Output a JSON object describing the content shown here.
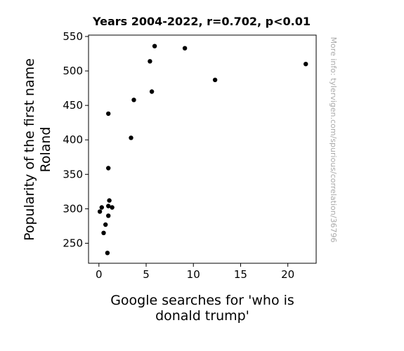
{
  "chart_data": {
    "type": "scatter",
    "title": "Years 2004-2022, r=0.702, p<0.01",
    "xlabel_lines": [
      "Google searches for 'who is",
      "donald trump'"
    ],
    "ylabel_lines": [
      "Popularity of the first name",
      "Roland"
    ],
    "xlim": [
      -1.1,
      23.0
    ],
    "ylim": [
      221,
      552
    ],
    "xticks": [
      0,
      5,
      10,
      15,
      20
    ],
    "yticks": [
      250,
      300,
      350,
      400,
      450,
      500,
      550
    ],
    "grid": false,
    "point_color": "#000000",
    "points": [
      {
        "x": 0.1,
        "y": 296
      },
      {
        "x": 0.3,
        "y": 302
      },
      {
        "x": 0.5,
        "y": 265
      },
      {
        "x": 0.7,
        "y": 277
      },
      {
        "x": 0.9,
        "y": 236
      },
      {
        "x": 1.0,
        "y": 290
      },
      {
        "x": 1.0,
        "y": 304
      },
      {
        "x": 1.1,
        "y": 312
      },
      {
        "x": 1.0,
        "y": 359
      },
      {
        "x": 1.0,
        "y": 438
      },
      {
        "x": 1.4,
        "y": 302
      },
      {
        "x": 3.4,
        "y": 403
      },
      {
        "x": 3.7,
        "y": 458
      },
      {
        "x": 5.4,
        "y": 514
      },
      {
        "x": 5.6,
        "y": 470
      },
      {
        "x": 5.9,
        "y": 536
      },
      {
        "x": 9.1,
        "y": 533
      },
      {
        "x": 12.3,
        "y": 487
      },
      {
        "x": 21.9,
        "y": 510
      }
    ]
  },
  "watermark": "More info: tylervigen.com/spurious/correlation/36796"
}
